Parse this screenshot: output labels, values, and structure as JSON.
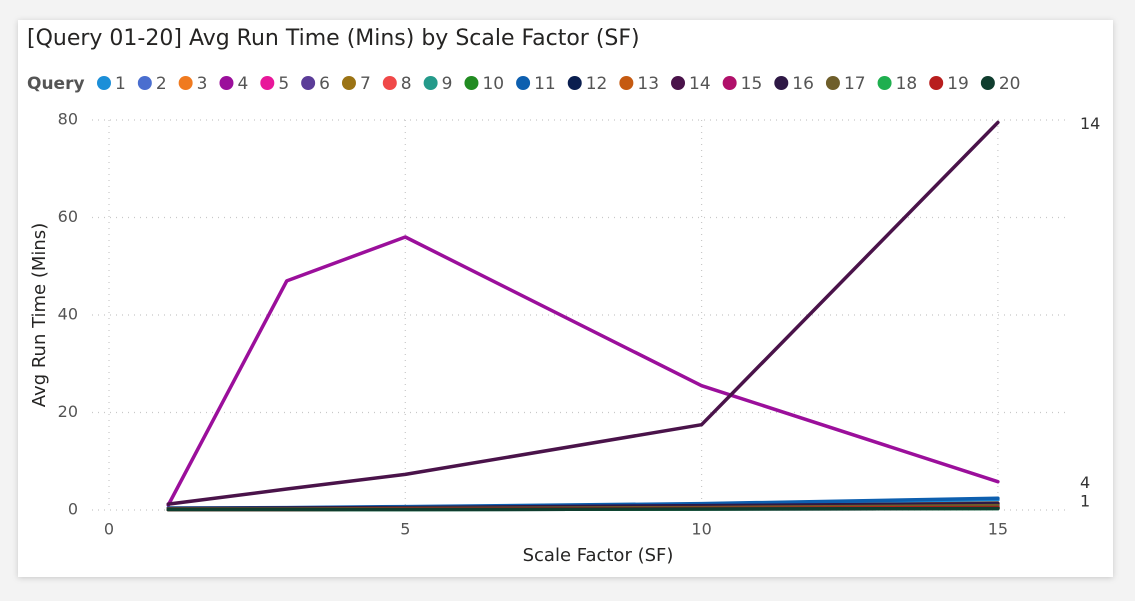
{
  "chart_data": {
    "type": "line",
    "title": "[Query 01-20] Avg Run Time (Mins) by Scale Factor (SF)",
    "legend_title": "Query",
    "x_label": "Scale Factor (SF)",
    "y_label": "Avg Run Time (Mins)",
    "x": [
      1,
      3,
      5,
      10,
      15
    ],
    "xlim": [
      0,
      16.2
    ],
    "xticks": [
      0,
      5,
      10,
      15
    ],
    "ylim": [
      0,
      80
    ],
    "yticks": [
      0,
      20,
      40,
      60,
      80
    ],
    "grid": true,
    "series": [
      {
        "name": "1",
        "color": "#1C8FD8",
        "values": [
          0.3,
          0.2,
          0.4,
          0.9,
          2.1
        ],
        "end_label": true
      },
      {
        "name": "2",
        "color": "#4A6ECF",
        "values": [
          0.1,
          0.1,
          0.2,
          0.3,
          0.5
        ]
      },
      {
        "name": "3",
        "color": "#F07A1F",
        "values": [
          0.1,
          0.1,
          0.2,
          0.4,
          0.6
        ]
      },
      {
        "name": "4",
        "color": "#9B0F9B",
        "values": [
          1.0,
          47,
          56,
          25.5,
          5.8
        ],
        "end_label": true
      },
      {
        "name": "5",
        "color": "#E8179A",
        "values": [
          0.1,
          0.1,
          0.1,
          0.2,
          0.3
        ]
      },
      {
        "name": "6",
        "color": "#5B3C98",
        "values": [
          0.1,
          0.1,
          0.2,
          0.3,
          0.5
        ]
      },
      {
        "name": "7",
        "color": "#9B7314",
        "values": [
          0.2,
          0.2,
          0.3,
          0.6,
          1.2
        ]
      },
      {
        "name": "8",
        "color": "#F04848",
        "values": [
          0.1,
          0.1,
          0.2,
          0.3,
          0.4
        ]
      },
      {
        "name": "9",
        "color": "#249A8A",
        "values": [
          0.1,
          0.1,
          0.1,
          0.2,
          0.3
        ]
      },
      {
        "name": "10",
        "color": "#218B21",
        "values": [
          0.1,
          0.1,
          0.2,
          0.3,
          0.5
        ]
      },
      {
        "name": "11",
        "color": "#0D5FAF",
        "values": [
          0.4,
          0.5,
          0.7,
          1.3,
          2.4
        ]
      },
      {
        "name": "12",
        "color": "#0A1E4F",
        "values": [
          0.2,
          0.2,
          0.3,
          0.5,
          0.8
        ]
      },
      {
        "name": "13",
        "color": "#C55A11",
        "values": [
          0.2,
          0.2,
          0.3,
          0.7,
          1.4
        ]
      },
      {
        "name": "14",
        "color": "#4A134A",
        "values": [
          1.2,
          4.3,
          7.3,
          17.5,
          79.5
        ],
        "end_label": true
      },
      {
        "name": "15",
        "color": "#B0106A",
        "values": [
          0.1,
          0.1,
          0.2,
          0.3,
          0.4
        ]
      },
      {
        "name": "16",
        "color": "#2E1845",
        "values": [
          0.3,
          0.4,
          0.5,
          0.9,
          1.3
        ]
      },
      {
        "name": "17",
        "color": "#6E5E2A",
        "values": [
          0.2,
          0.2,
          0.3,
          0.5,
          0.9
        ]
      },
      {
        "name": "18",
        "color": "#1FAF4F",
        "values": [
          0.1,
          0.1,
          0.1,
          0.2,
          0.3
        ]
      },
      {
        "name": "19",
        "color": "#B81D1D",
        "values": [
          0.1,
          0.1,
          0.2,
          0.3,
          0.5
        ]
      },
      {
        "name": "20",
        "color": "#0F3D2E",
        "values": [
          0.1,
          0.1,
          0.1,
          0.2,
          0.3
        ]
      }
    ]
  }
}
